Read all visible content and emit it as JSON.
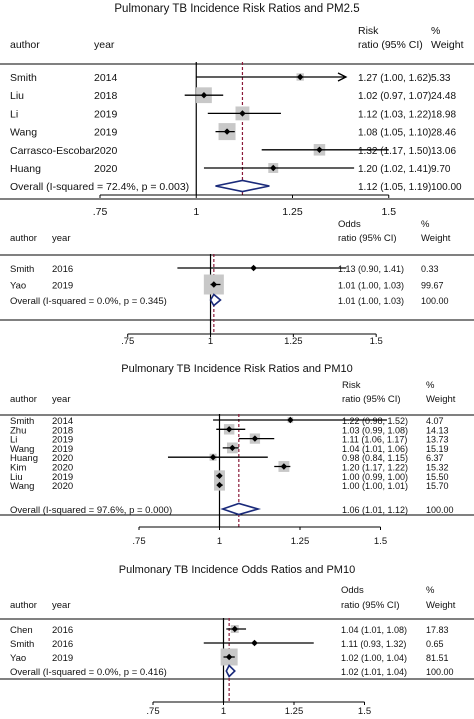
{
  "colors": {
    "diamond": "#1a2a7a",
    "ref_line": "#8b1a3a",
    "box": "#c8c8c8",
    "text": "#111111"
  },
  "chart_data": [
    {
      "type": "forest",
      "title": "Pulmonary TB Incidence Risk Ratios and PM2.5",
      "col_author": "author",
      "col_year": "year",
      "col_effect": [
        "Risk",
        "ratio (95% CI)"
      ],
      "col_weight": [
        "%",
        "Weight"
      ],
      "xticks": [
        ".75",
        "1",
        "1.25",
        "1.5"
      ],
      "xlim": [
        0.6,
        1.6
      ],
      "pooled_label": "Overall",
      "heterogeneity": "(I-squared = 72.4%, p = 0.003)",
      "studies": [
        {
          "author": "Smith",
          "year": "2014",
          "est": 1.27,
          "lo": 1.0,
          "hi": 1.62,
          "ci_text": "1.27 (1.00, 1.62)",
          "weight": "5.33",
          "arrow": true
        },
        {
          "author": "Liu",
          "year": "2018",
          "est": 1.02,
          "lo": 0.97,
          "hi": 1.07,
          "ci_text": "1.02 (0.97, 1.07)",
          "weight": "24.48"
        },
        {
          "author": "Li",
          "year": "2019",
          "est": 1.12,
          "lo": 1.03,
          "hi": 1.22,
          "ci_text": "1.12 (1.03, 1.22)",
          "weight": "18.98"
        },
        {
          "author": "Wang",
          "year": "2019",
          "est": 1.08,
          "lo": 1.05,
          "hi": 1.1,
          "ci_text": "1.08 (1.05, 1.10)",
          "weight": "28.46"
        },
        {
          "author": "Carrasco-Escobar",
          "year": "2020",
          "est": 1.32,
          "lo": 1.17,
          "hi": 1.5,
          "ci_text": "1.32 (1.17, 1.50)",
          "weight": "13.06"
        },
        {
          "author": "Huang",
          "year": "2020",
          "est": 1.2,
          "lo": 1.02,
          "hi": 1.41,
          "ci_text": "1.20 (1.02, 1.41)",
          "weight": "9.70"
        }
      ],
      "overall": {
        "est": 1.12,
        "lo": 1.05,
        "hi": 1.19,
        "ci_text": "1.12 (1.05, 1.19)",
        "weight": "100.00"
      }
    },
    {
      "type": "forest",
      "title": "",
      "col_author": "author",
      "col_year": "year",
      "col_effect": [
        "Odds",
        "ratio (95% CI)"
      ],
      "col_weight": [
        "%",
        "Weight"
      ],
      "xticks": [
        ".75",
        "1",
        "1.25",
        "1.5"
      ],
      "xlim": [
        0.6,
        1.6
      ],
      "pooled_label": "Overall",
      "heterogeneity": "(I-squared = 0.0%, p = 0.345)",
      "studies": [
        {
          "author": "Smith",
          "year": "2016",
          "est": 1.13,
          "lo": 0.9,
          "hi": 1.41,
          "ci_text": "1.13 (0.90, 1.41)",
          "weight": "0.33"
        },
        {
          "author": "Yao",
          "year": "2019",
          "est": 1.01,
          "lo": 1.0,
          "hi": 1.03,
          "ci_text": "1.01 (1.00, 1.03)",
          "weight": "99.67"
        }
      ],
      "overall": {
        "est": 1.01,
        "lo": 1.0,
        "hi": 1.03,
        "ci_text": "1.01 (1.00, 1.03)",
        "weight": "100.00"
      }
    },
    {
      "type": "forest",
      "title": "Pulmonary TB Incidence Risk Ratios and PM10",
      "col_author": "author",
      "col_year": "year",
      "col_effect": [
        "Risk",
        "ratio (95% CI)"
      ],
      "col_weight": [
        "%",
        "Weight"
      ],
      "xticks": [
        ".75",
        "1",
        "1.25",
        "1.5"
      ],
      "xlim": [
        0.6,
        1.6
      ],
      "pooled_label": "Overall",
      "heterogeneity": "(I-squared = 97.6%, p = 0.000)",
      "studies": [
        {
          "author": "Smith",
          "year": "2014",
          "est": 1.22,
          "lo": 0.98,
          "hi": 1.52,
          "ci_text": "1.22 (0.98, 1.52)",
          "weight": "4.07"
        },
        {
          "author": "Zhu",
          "year": "2018",
          "est": 1.03,
          "lo": 0.99,
          "hi": 1.08,
          "ci_text": "1.03 (0.99, 1.08)",
          "weight": "14.13"
        },
        {
          "author": "Li",
          "year": "2019",
          "est": 1.11,
          "lo": 1.06,
          "hi": 1.17,
          "ci_text": "1.11 (1.06, 1.17)",
          "weight": "13.73"
        },
        {
          "author": "Wang",
          "year": "2019",
          "est": 1.04,
          "lo": 1.01,
          "hi": 1.06,
          "ci_text": "1.04 (1.01, 1.06)",
          "weight": "15.19"
        },
        {
          "author": "Huang",
          "year": "2020",
          "est": 0.98,
          "lo": 0.84,
          "hi": 1.15,
          "ci_text": "0.98 (0.84, 1.15)",
          "weight": "6.37"
        },
        {
          "author": "Kim",
          "year": "2020",
          "est": 1.2,
          "lo": 1.17,
          "hi": 1.22,
          "ci_text": "1.20 (1.17, 1.22)",
          "weight": "15.32"
        },
        {
          "author": "Liu",
          "year": "2019",
          "est": 1.0,
          "lo": 0.99,
          "hi": 1.0,
          "ci_text": "1.00 (0.99, 1.00)",
          "weight": "15.50"
        },
        {
          "author": "Wang",
          "year": "2020",
          "est": 1.0,
          "lo": 1.0,
          "hi": 1.01,
          "ci_text": "1.00 (1.00, 1.01)",
          "weight": "15.70"
        }
      ],
      "overall": {
        "est": 1.06,
        "lo": 1.01,
        "hi": 1.12,
        "ci_text": "1.06 (1.01, 1.12)",
        "weight": "100.00"
      }
    },
    {
      "type": "forest",
      "title": "Pulmonary TB Incidence Odds Ratios and PM10",
      "col_author": "author",
      "col_year": "year",
      "col_effect": [
        "Odds",
        "ratio (95% CI)"
      ],
      "col_weight": [
        "%",
        "Weight"
      ],
      "xticks": [
        ".75",
        "1",
        "1.25",
        "1.5"
      ],
      "xlim": [
        0.6,
        1.6
      ],
      "pooled_label": "Overall",
      "heterogeneity": "(I-squared = 0.0%, p = 0.416)",
      "studies": [
        {
          "author": "Chen",
          "year": "2016",
          "est": 1.04,
          "lo": 1.01,
          "hi": 1.08,
          "ci_text": "1.04 (1.01, 1.08)",
          "weight": "17.83"
        },
        {
          "author": "Smith",
          "year": "2016",
          "est": 1.11,
          "lo": 0.93,
          "hi": 1.32,
          "ci_text": "1.11 (0.93, 1.32)",
          "weight": "0.65"
        },
        {
          "author": "Yao",
          "year": "2019",
          "est": 1.02,
          "lo": 1.0,
          "hi": 1.04,
          "ci_text": "1.02 (1.00, 1.04)",
          "weight": "81.51"
        }
      ],
      "overall": {
        "est": 1.02,
        "lo": 1.01,
        "hi": 1.04,
        "ci_text": "1.02 (1.01, 1.04)",
        "weight": "100.00"
      }
    }
  ]
}
